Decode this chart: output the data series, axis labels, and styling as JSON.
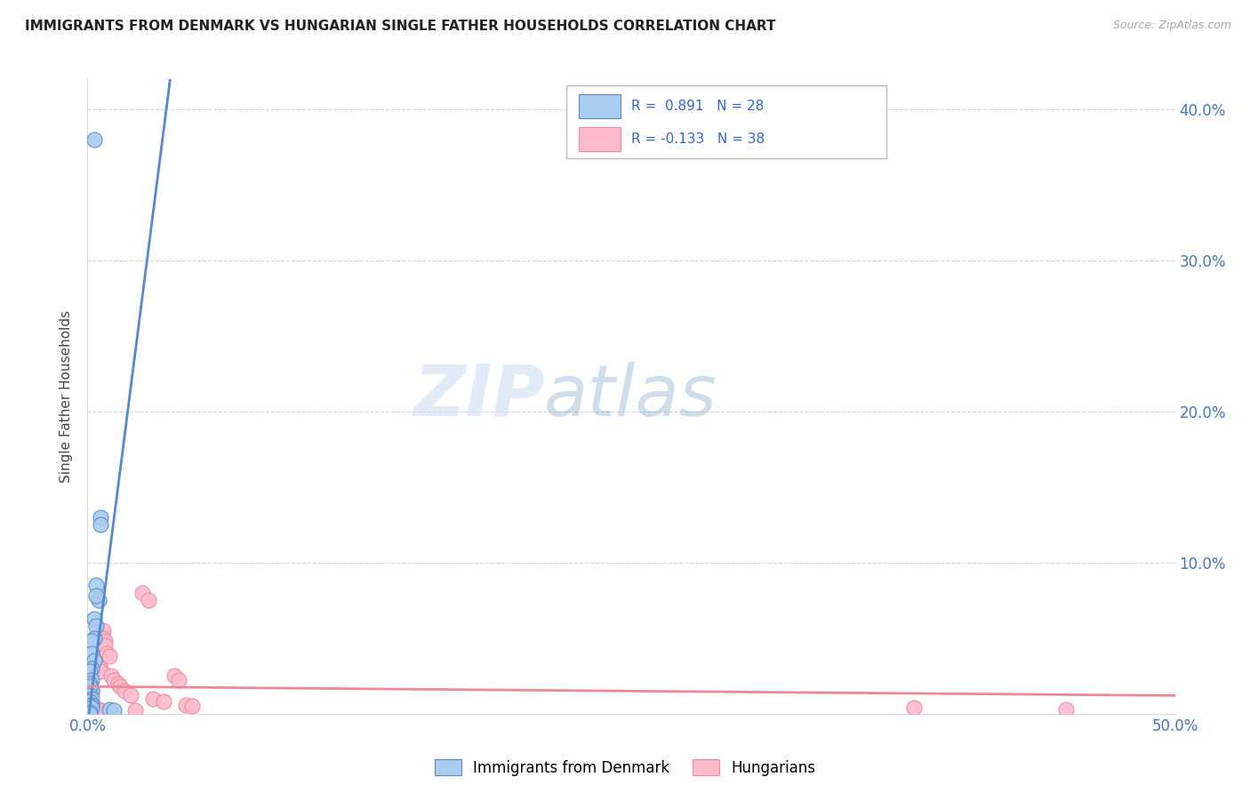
{
  "title": "IMMIGRANTS FROM DENMARK VS HUNGARIAN SINGLE FATHER HOUSEHOLDS CORRELATION CHART",
  "source": "Source: ZipAtlas.com",
  "ylabel": "Single Father Households",
  "xlim": [
    0.0,
    0.5
  ],
  "ylim": [
    0.0,
    0.42
  ],
  "xticks": [
    0.0,
    0.1,
    0.2,
    0.3,
    0.4,
    0.5
  ],
  "yticks": [
    0.0,
    0.1,
    0.2,
    0.3,
    0.4
  ],
  "xtick_labels": [
    "0.0%",
    "",
    "",
    "",
    "",
    "50.0%"
  ],
  "ytick_right_labels": [
    "",
    "10.0%",
    "20.0%",
    "30.0%",
    "40.0%"
  ],
  "blue_color": "#AACCEE",
  "blue_color_edge": "#5588CC",
  "pink_color": "#FFBBCC",
  "pink_color_edge": "#EE8899",
  "R_blue": 0.891,
  "N_blue": 28,
  "R_pink": -0.133,
  "N_pink": 38,
  "legend_label_blue": "Immigrants from Denmark",
  "legend_label_pink": "Hungarians",
  "watermark_zip": "ZIP",
  "watermark_atlas": "atlas",
  "blue_line": [
    [
      0.0,
      -0.008
    ],
    [
      0.038,
      0.42
    ]
  ],
  "pink_line": [
    [
      0.0,
      0.018
    ],
    [
      0.5,
      0.012
    ]
  ],
  "blue_dots": [
    [
      0.003,
      0.38
    ],
    [
      0.006,
      0.13
    ],
    [
      0.006,
      0.125
    ],
    [
      0.004,
      0.085
    ],
    [
      0.005,
      0.075
    ],
    [
      0.004,
      0.078
    ],
    [
      0.003,
      0.063
    ],
    [
      0.004,
      0.058
    ],
    [
      0.003,
      0.05
    ],
    [
      0.002,
      0.048
    ],
    [
      0.002,
      0.04
    ],
    [
      0.003,
      0.035
    ],
    [
      0.002,
      0.03
    ],
    [
      0.001,
      0.028
    ],
    [
      0.002,
      0.022
    ],
    [
      0.001,
      0.02
    ],
    [
      0.002,
      0.015
    ],
    [
      0.001,
      0.018
    ],
    [
      0.001,
      0.012
    ],
    [
      0.002,
      0.01
    ],
    [
      0.001,
      0.008
    ],
    [
      0.002,
      0.006
    ],
    [
      0.001,
      0.005
    ],
    [
      0.002,
      0.004
    ],
    [
      0.01,
      0.003
    ],
    [
      0.012,
      0.002
    ],
    [
      0.001,
      0.001
    ],
    [
      0.001,
      0.0
    ]
  ],
  "pink_dots": [
    [
      0.001,
      0.02
    ],
    [
      0.001,
      0.018
    ],
    [
      0.002,
      0.016
    ],
    [
      0.002,
      0.014
    ],
    [
      0.003,
      0.03
    ],
    [
      0.003,
      0.028
    ],
    [
      0.004,
      0.035
    ],
    [
      0.005,
      0.032
    ],
    [
      0.006,
      0.03
    ],
    [
      0.006,
      0.028
    ],
    [
      0.007,
      0.055
    ],
    [
      0.007,
      0.05
    ],
    [
      0.008,
      0.048
    ],
    [
      0.008,
      0.045
    ],
    [
      0.009,
      0.04
    ],
    [
      0.01,
      0.038
    ],
    [
      0.011,
      0.025
    ],
    [
      0.012,
      0.022
    ],
    [
      0.014,
      0.02
    ],
    [
      0.015,
      0.018
    ],
    [
      0.017,
      0.015
    ],
    [
      0.02,
      0.012
    ],
    [
      0.025,
      0.08
    ],
    [
      0.028,
      0.075
    ],
    [
      0.03,
      0.01
    ],
    [
      0.035,
      0.008
    ],
    [
      0.04,
      0.025
    ],
    [
      0.042,
      0.022
    ],
    [
      0.045,
      0.006
    ],
    [
      0.048,
      0.005
    ],
    [
      0.002,
      0.005
    ],
    [
      0.003,
      0.004
    ],
    [
      0.004,
      0.003
    ],
    [
      0.005,
      0.003
    ],
    [
      0.006,
      0.002
    ],
    [
      0.022,
      0.002
    ],
    [
      0.45,
      0.003
    ],
    [
      0.38,
      0.004
    ]
  ]
}
